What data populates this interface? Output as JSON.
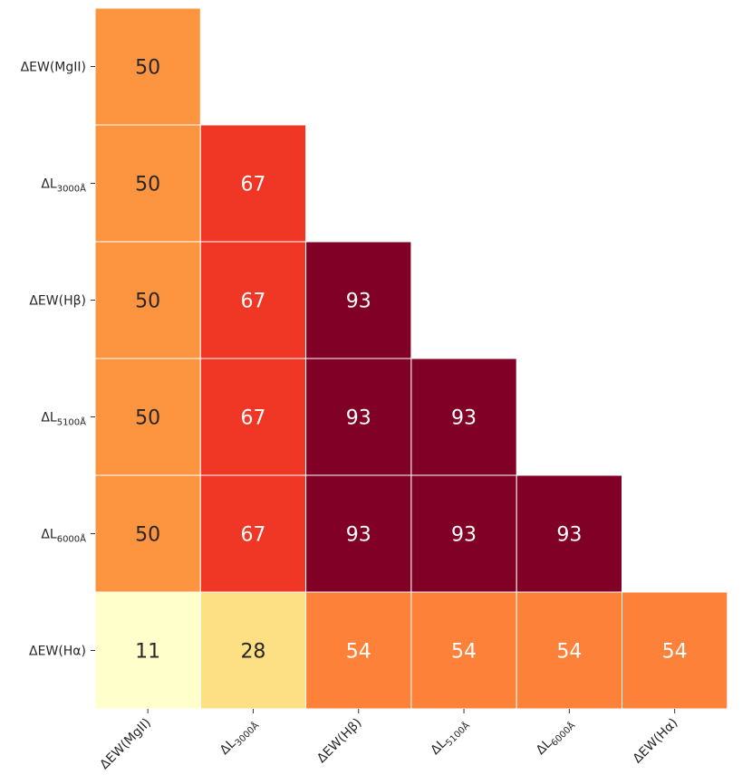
{
  "chart_data": {
    "type": "heatmap",
    "title": "",
    "xlabel": "",
    "ylabel": "",
    "x_labels": [
      {
        "main": "ΔEW(MgII)",
        "sub": ""
      },
      {
        "main": "ΔL",
        "sub": "3000Å"
      },
      {
        "main": "ΔEW(Hβ)",
        "sub": ""
      },
      {
        "main": "ΔL",
        "sub": "5100Å"
      },
      {
        "main": "ΔL",
        "sub": "6000Å"
      },
      {
        "main": "ΔEW(Hα)",
        "sub": ""
      }
    ],
    "y_labels": [
      {
        "main": "ΔEW(MgII)",
        "sub": ""
      },
      {
        "main": "ΔL",
        "sub": "3000Å"
      },
      {
        "main": "ΔEW(Hβ)",
        "sub": ""
      },
      {
        "main": "ΔL",
        "sub": "5100Å"
      },
      {
        "main": "ΔL",
        "sub": "6000Å"
      },
      {
        "main": "ΔEW(Hα)",
        "sub": ""
      }
    ],
    "values": [
      [
        50,
        null,
        null,
        null,
        null,
        null
      ],
      [
        50,
        67,
        null,
        null,
        null,
        null
      ],
      [
        50,
        67,
        93,
        null,
        null,
        null
      ],
      [
        50,
        67,
        93,
        93,
        null,
        null
      ],
      [
        50,
        67,
        93,
        93,
        93,
        null
      ],
      [
        11,
        28,
        54,
        54,
        54,
        54
      ]
    ],
    "colormap": "YlOrRd",
    "vmin": 11,
    "vmax": 93,
    "annotated": true
  }
}
